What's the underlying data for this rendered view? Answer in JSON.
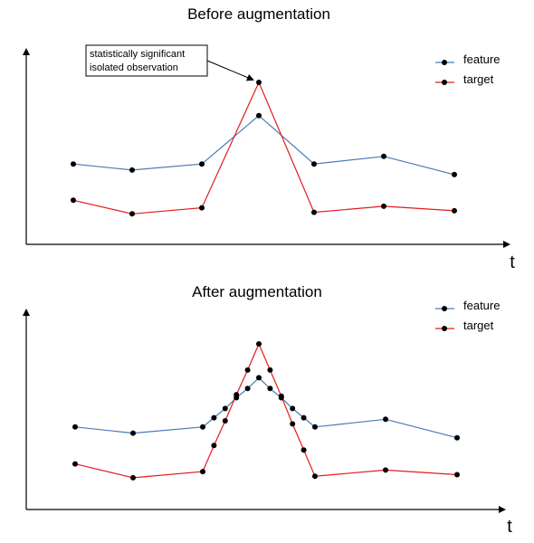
{
  "colors": {
    "feature": "#4a7bb7",
    "target": "#e31b1b",
    "axis": "#000000",
    "marker": "#000000"
  },
  "legend": {
    "feature_label": "feature",
    "target_label": "target",
    "placement": "top-right"
  },
  "chart_data": [
    {
      "type": "line",
      "title": "Before augmentation",
      "xlabel": "t",
      "ylabel": "",
      "annotation": {
        "line1": "statistically significant",
        "line2": "isolated observation",
        "points_to": "target peak"
      },
      "series": [
        {
          "name": "feature",
          "x": [
            1,
            2,
            3,
            4,
            5,
            6,
            7
          ],
          "values": [
            0.46,
            0.42,
            0.46,
            0.78,
            0.46,
            0.51,
            0.39
          ]
        },
        {
          "name": "target",
          "x": [
            1,
            2,
            3,
            4,
            5,
            6,
            7
          ],
          "values": [
            0.22,
            0.13,
            0.17,
            1.0,
            0.14,
            0.18,
            0.15
          ]
        }
      ]
    },
    {
      "type": "line",
      "title": "After augmentation",
      "xlabel": "t",
      "ylabel": "",
      "series": [
        {
          "name": "feature",
          "x": [
            1,
            2,
            3,
            3.2,
            3.4,
            3.6,
            3.8,
            4,
            4.2,
            4.4,
            4.6,
            4.8,
            5,
            6,
            7
          ],
          "values": [
            0.46,
            0.42,
            0.46,
            0.52,
            0.58,
            0.65,
            0.71,
            0.78,
            0.71,
            0.65,
            0.58,
            0.52,
            0.46,
            0.51,
            0.39
          ]
        },
        {
          "name": "target",
          "x": [
            1,
            2,
            3,
            3.2,
            3.4,
            3.6,
            3.8,
            4,
            4.2,
            4.4,
            4.6,
            4.8,
            5,
            6,
            7
          ],
          "values": [
            0.22,
            0.13,
            0.17,
            0.34,
            0.5,
            0.67,
            0.83,
            1.0,
            0.83,
            0.66,
            0.48,
            0.31,
            0.14,
            0.18,
            0.15
          ]
        }
      ]
    }
  ]
}
